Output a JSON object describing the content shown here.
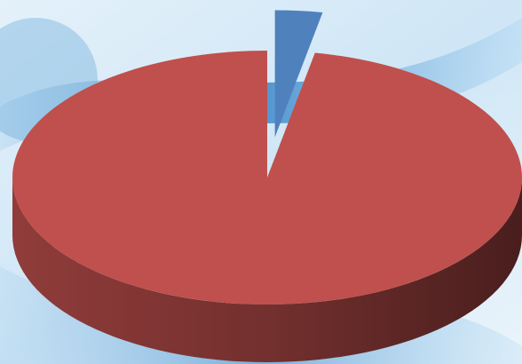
{
  "chart_data": {
    "type": "pie",
    "values": [
      3,
      97
    ],
    "colors": [
      "#4f81bd",
      "#c0504d"
    ]
  }
}
